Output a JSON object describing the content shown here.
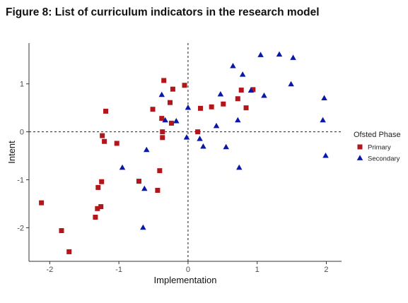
{
  "figure": {
    "title": "Figure 8: List of curriculum indicators in the research model"
  },
  "chart_data": {
    "type": "scatter",
    "title": "Figure 8: List of curriculum indicators in the research model",
    "xlabel": "Implementation",
    "ylabel": "Intent",
    "xlim": [
      -2.3,
      2.22
    ],
    "ylim": [
      -2.7,
      1.85
    ],
    "xticks": [
      -2,
      -1,
      0,
      1,
      2
    ],
    "yticks": [
      -2,
      -1,
      0,
      1
    ],
    "xtick_labels": [
      "-2",
      "-1",
      "0",
      "1",
      "2"
    ],
    "ytick_labels": [
      "-2",
      "-1",
      "0",
      "1"
    ],
    "reference_lines": {
      "x": 0,
      "y": 0,
      "style": "dashed"
    },
    "grid": false,
    "legend": {
      "title": "Ofsted Phase",
      "placement": "right"
    },
    "series": [
      {
        "name": "Primary",
        "marker": "square",
        "color": "#b2161b",
        "points": [
          [
            -0.35,
            1.07
          ],
          [
            -0.05,
            0.97
          ],
          [
            -0.22,
            0.89
          ],
          [
            -0.26,
            0.61
          ],
          [
            -0.51,
            0.47
          ],
          [
            -1.19,
            0.43
          ],
          [
            -0.38,
            0.28
          ],
          [
            -0.24,
            0.18
          ],
          [
            -0.37,
            0.0
          ],
          [
            -0.37,
            -0.12
          ],
          [
            -1.24,
            -0.08
          ],
          [
            -1.21,
            -0.2
          ],
          [
            -1.03,
            -0.24
          ],
          [
            -0.41,
            -0.81
          ],
          [
            -0.71,
            -1.03
          ],
          [
            -1.25,
            -1.04
          ],
          [
            -0.44,
            -1.22
          ],
          [
            -1.3,
            -1.16
          ],
          [
            -1.31,
            -1.6
          ],
          [
            -1.26,
            -1.56
          ],
          [
            -1.34,
            -1.78
          ],
          [
            -2.12,
            -1.48
          ],
          [
            -1.83,
            -2.06
          ],
          [
            -1.72,
            -2.5
          ],
          [
            0.14,
            0.0
          ],
          [
            0.18,
            0.49
          ],
          [
            0.34,
            0.52
          ],
          [
            0.51,
            0.58
          ],
          [
            0.72,
            0.69
          ],
          [
            0.77,
            0.87
          ],
          [
            0.84,
            0.5
          ],
          [
            0.94,
            0.88
          ]
        ]
      },
      {
        "name": "Secondary",
        "marker": "triangle",
        "color": "#0a18a8",
        "points": [
          [
            1.05,
            1.6
          ],
          [
            1.32,
            1.61
          ],
          [
            1.52,
            1.54
          ],
          [
            0.65,
            1.37
          ],
          [
            0.79,
            1.19
          ],
          [
            1.49,
            0.99
          ],
          [
            0.91,
            0.86
          ],
          [
            1.1,
            0.75
          ],
          [
            0.47,
            0.78
          ],
          [
            -0.38,
            0.77
          ],
          [
            1.97,
            0.7
          ],
          [
            0.0,
            0.5
          ],
          [
            -0.33,
            0.24
          ],
          [
            -0.17,
            0.22
          ],
          [
            0.72,
            0.24
          ],
          [
            1.95,
            0.24
          ],
          [
            0.41,
            0.12
          ],
          [
            -0.02,
            -0.12
          ],
          [
            0.17,
            -0.15
          ],
          [
            0.22,
            -0.31
          ],
          [
            0.55,
            -0.32
          ],
          [
            -0.6,
            -0.38
          ],
          [
            1.99,
            -0.5
          ],
          [
            -0.95,
            -0.75
          ],
          [
            0.74,
            -0.75
          ],
          [
            -0.63,
            -1.19
          ],
          [
            -0.65,
            -2.0
          ]
        ]
      }
    ]
  }
}
